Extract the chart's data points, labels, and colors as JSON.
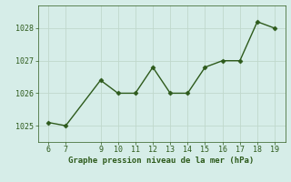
{
  "x": [
    6,
    7,
    9,
    10,
    11,
    12,
    13,
    14,
    15,
    16,
    17,
    18,
    19
  ],
  "y": [
    1025.1,
    1025.0,
    1026.4,
    1026.0,
    1026.0,
    1026.8,
    1026.0,
    1026.0,
    1026.8,
    1027.0,
    1027.0,
    1028.2,
    1028.0
  ],
  "line_color": "#2d5a1b",
  "marker": "D",
  "markersize": 2.5,
  "linewidth": 1.0,
  "background_color": "#d6ede8",
  "grid_color": "#c0d8cc",
  "xlabel": "Graphe pression niveau de la mer (hPa)",
  "xlabel_color": "#2d5a1b",
  "xlabel_fontsize": 6.5,
  "ylim": [
    1024.5,
    1028.7
  ],
  "xlim": [
    5.4,
    19.6
  ],
  "yticks": [
    1025,
    1026,
    1027,
    1028
  ],
  "xticks": [
    6,
    7,
    9,
    10,
    11,
    12,
    13,
    14,
    15,
    16,
    17,
    18,
    19
  ],
  "tick_color": "#2d5a1b",
  "tick_fontsize": 6.0
}
